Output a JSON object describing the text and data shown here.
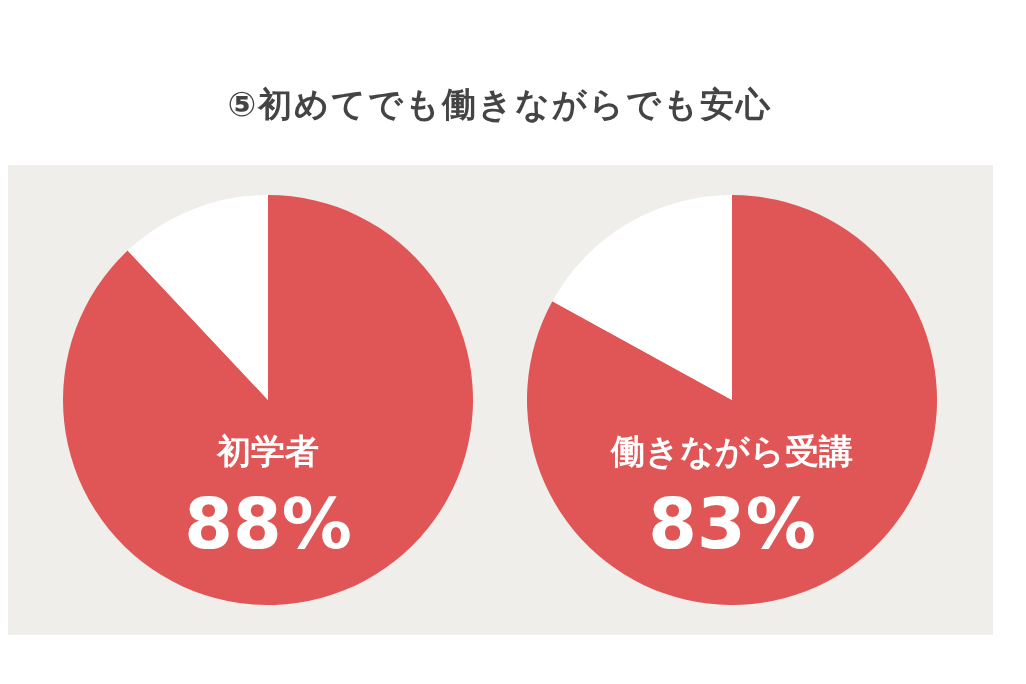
{
  "chart_data": [
    {
      "type": "pie",
      "title": "⑤初めてでも働きながらでも安心",
      "categories": [
        "初学者",
        null
      ],
      "values": [
        88,
        12
      ],
      "colors": [
        "#e05555",
        "#ffffff"
      ],
      "value_labels": [
        "88%",
        null
      ]
    },
    {
      "type": "pie",
      "categories": [
        "働きながら受講",
        null
      ],
      "values": [
        83,
        17
      ],
      "colors": [
        "#e05555",
        "#ffffff"
      ],
      "value_labels": [
        "83%",
        null
      ]
    }
  ]
}
